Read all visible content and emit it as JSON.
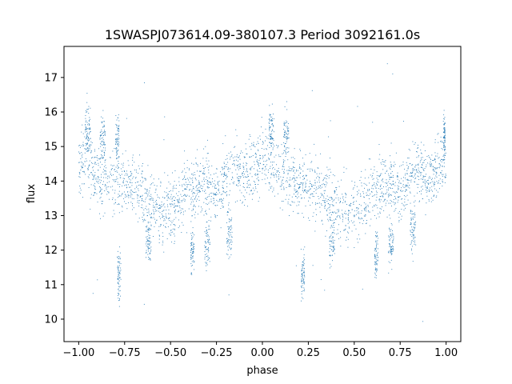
{
  "chart_data": {
    "type": "scatter",
    "title": "1SWASPJ073614.09-380107.3 Period 3092161.0s",
    "xlabel": "phase",
    "ylabel": "flux",
    "xlim": [
      -1.08,
      1.08
    ],
    "ylim": [
      9.35,
      17.9
    ],
    "xticks": [
      -1.0,
      -0.75,
      -0.5,
      -0.25,
      0.0,
      0.25,
      0.5,
      0.75,
      1.0
    ],
    "xtick_labels": [
      "−1.00",
      "−0.75",
      "−0.50",
      "−0.25",
      "0.00",
      "0.25",
      "0.50",
      "0.75",
      "1.00"
    ],
    "yticks": [
      10,
      11,
      12,
      13,
      14,
      15,
      16,
      17
    ],
    "ytick_labels": [
      "10",
      "11",
      "12",
      "13",
      "14",
      "15",
      "16",
      "17"
    ],
    "grid": false,
    "marker_color": "#1f77b4",
    "series": [
      {
        "profile_x": [
          -1.0,
          -0.95,
          -0.9,
          -0.85,
          -0.8,
          -0.75,
          -0.7,
          -0.65,
          -0.6,
          -0.55,
          -0.5,
          -0.45,
          -0.4,
          -0.35,
          -0.3,
          -0.25,
          -0.2,
          -0.15,
          -0.1,
          -0.05,
          0.0,
          0.05,
          0.1,
          0.15,
          0.2,
          0.25,
          0.3,
          0.35,
          0.4,
          0.45,
          0.5,
          0.55,
          0.6,
          0.65,
          0.7,
          0.75,
          0.8,
          0.85,
          0.9,
          0.95,
          1.0
        ],
        "profile_y": [
          14.6,
          14.6,
          14.1,
          14.0,
          14.0,
          13.9,
          13.8,
          13.5,
          13.2,
          13.1,
          13.2,
          13.4,
          13.7,
          13.9,
          14.0,
          13.6,
          14.2,
          14.4,
          14.1,
          14.3,
          14.6,
          14.6,
          14.1,
          14.0,
          14.0,
          13.9,
          13.8,
          13.5,
          13.2,
          13.1,
          13.2,
          13.4,
          13.7,
          13.9,
          14.0,
          13.6,
          14.2,
          14.4,
          14.1,
          14.3,
          14.6
        ],
        "clusters": [
          {
            "x": -0.95,
            "y": 15.5,
            "width": 0.03
          },
          {
            "x": -0.87,
            "y": 15.3,
            "width": 0.03
          },
          {
            "x": -0.79,
            "y": 15.2,
            "width": 0.02
          },
          {
            "x": -0.78,
            "y": 11.3,
            "width": 0.02
          },
          {
            "x": -0.62,
            "y": 12.3,
            "width": 0.03
          },
          {
            "x": -0.38,
            "y": 11.9,
            "width": 0.02
          },
          {
            "x": -0.3,
            "y": 12.2,
            "width": 0.03
          },
          {
            "x": -0.18,
            "y": 12.5,
            "width": 0.03
          },
          {
            "x": 0.05,
            "y": 15.5,
            "width": 0.03
          },
          {
            "x": 0.13,
            "y": 15.3,
            "width": 0.03
          },
          {
            "x": 0.22,
            "y": 11.3,
            "width": 0.02
          },
          {
            "x": 0.38,
            "y": 12.3,
            "width": 0.03
          },
          {
            "x": 0.62,
            "y": 11.9,
            "width": 0.02
          },
          {
            "x": 0.7,
            "y": 12.2,
            "width": 0.03
          },
          {
            "x": 0.82,
            "y": 12.5,
            "width": 0.03
          },
          {
            "x": 0.99,
            "y": 15.3,
            "width": 0.01
          }
        ],
        "spread": 0.45,
        "point_count": 2600
      }
    ]
  }
}
